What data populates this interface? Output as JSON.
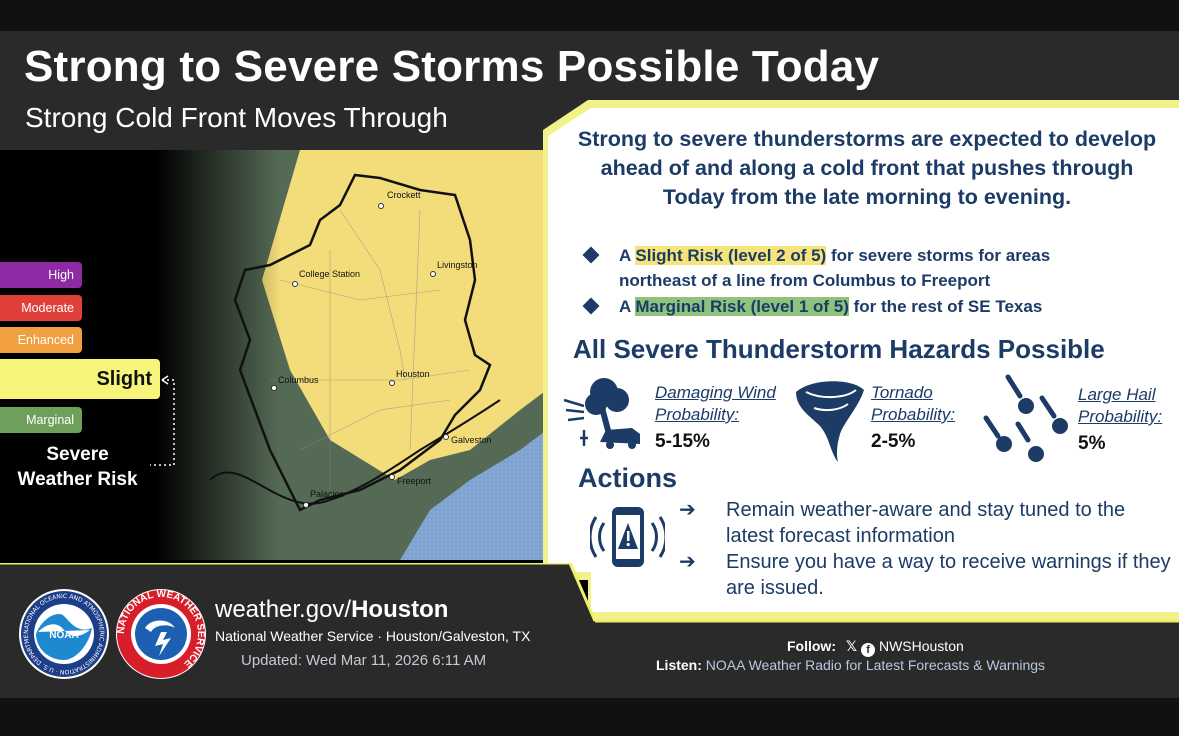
{
  "header": {
    "title": "Strong to Severe Storms Possible Today",
    "subtitle": "Strong Cold Front Moves Through"
  },
  "legend": {
    "items": [
      "High",
      "Moderate",
      "Enhanced",
      "Slight",
      "Marginal"
    ],
    "title_line1": "Severe",
    "title_line2": "Weather Risk"
  },
  "map": {
    "cities": [
      "Crockett",
      "College Station",
      "Livingston",
      "Columbus",
      "Houston",
      "Galveston",
      "Freeport",
      "Palacios"
    ]
  },
  "summary": {
    "text": "Strong to severe thunderstorms are expected to develop ahead of and along a cold front that pushes through Today from the late morning to evening."
  },
  "bullets": {
    "b1_prefix": "A",
    "b1_highlight": "Slight Risk (level 2 of 5)",
    "b1_rest": "for severe storms for areas",
    "b1_line2": "northeast of a line from Columbus to Freeport",
    "b2_prefix": "A",
    "b2_highlight": "Marginal Risk (level 1 of 5)",
    "b2_rest": "for the rest of SE Texas"
  },
  "hazards": {
    "title": "All Severe Thunderstorm Hazards Possible",
    "wind_label1": "Damaging Wind",
    "wind_label2": "Probability:",
    "wind_value": "5-15%",
    "tornado_label1": "Tornado",
    "tornado_label2": "Probability:",
    "tornado_value": "2-5%",
    "hail_label1": "Large Hail",
    "hail_label2": "Probability:",
    "hail_value": "5%"
  },
  "actions": {
    "title": "Actions",
    "arrow": "➔",
    "a1": "Remain weather-aware and stay tuned to the latest forecast information",
    "a2": "Ensure you have a way to receive warnings if they are issued."
  },
  "footer": {
    "site_prefix": "weather.gov/",
    "site_bold": "Houston",
    "office": "National Weather Service · Houston/Galveston, TX",
    "updated": "Updated: Wed Mar 11, 2026 6:11 AM",
    "follow_label": "Follow:",
    "handle": "NWSHouston",
    "listen_label": "Listen:",
    "listen_text": "NOAA Weather Radio for Latest Forecasts & Warnings",
    "noaa_logo_text": "NOAA",
    "noaa_ring_text": "NATIONAL OCEANIC AND ATMOSPHERIC ADMINISTRATION · U.S. DEPARTMENT OF COMMERCE",
    "nws_ring_text": "NATIONAL WEATHER SERVICE"
  },
  "colors": {
    "navy": "#1c3b66",
    "slight": "#f6e37a",
    "marginal": "#6ea05c",
    "high": "#8e2aa4",
    "moderate": "#e0403a",
    "enhanced": "#f0a040",
    "accent_yellow": "#eef068"
  }
}
